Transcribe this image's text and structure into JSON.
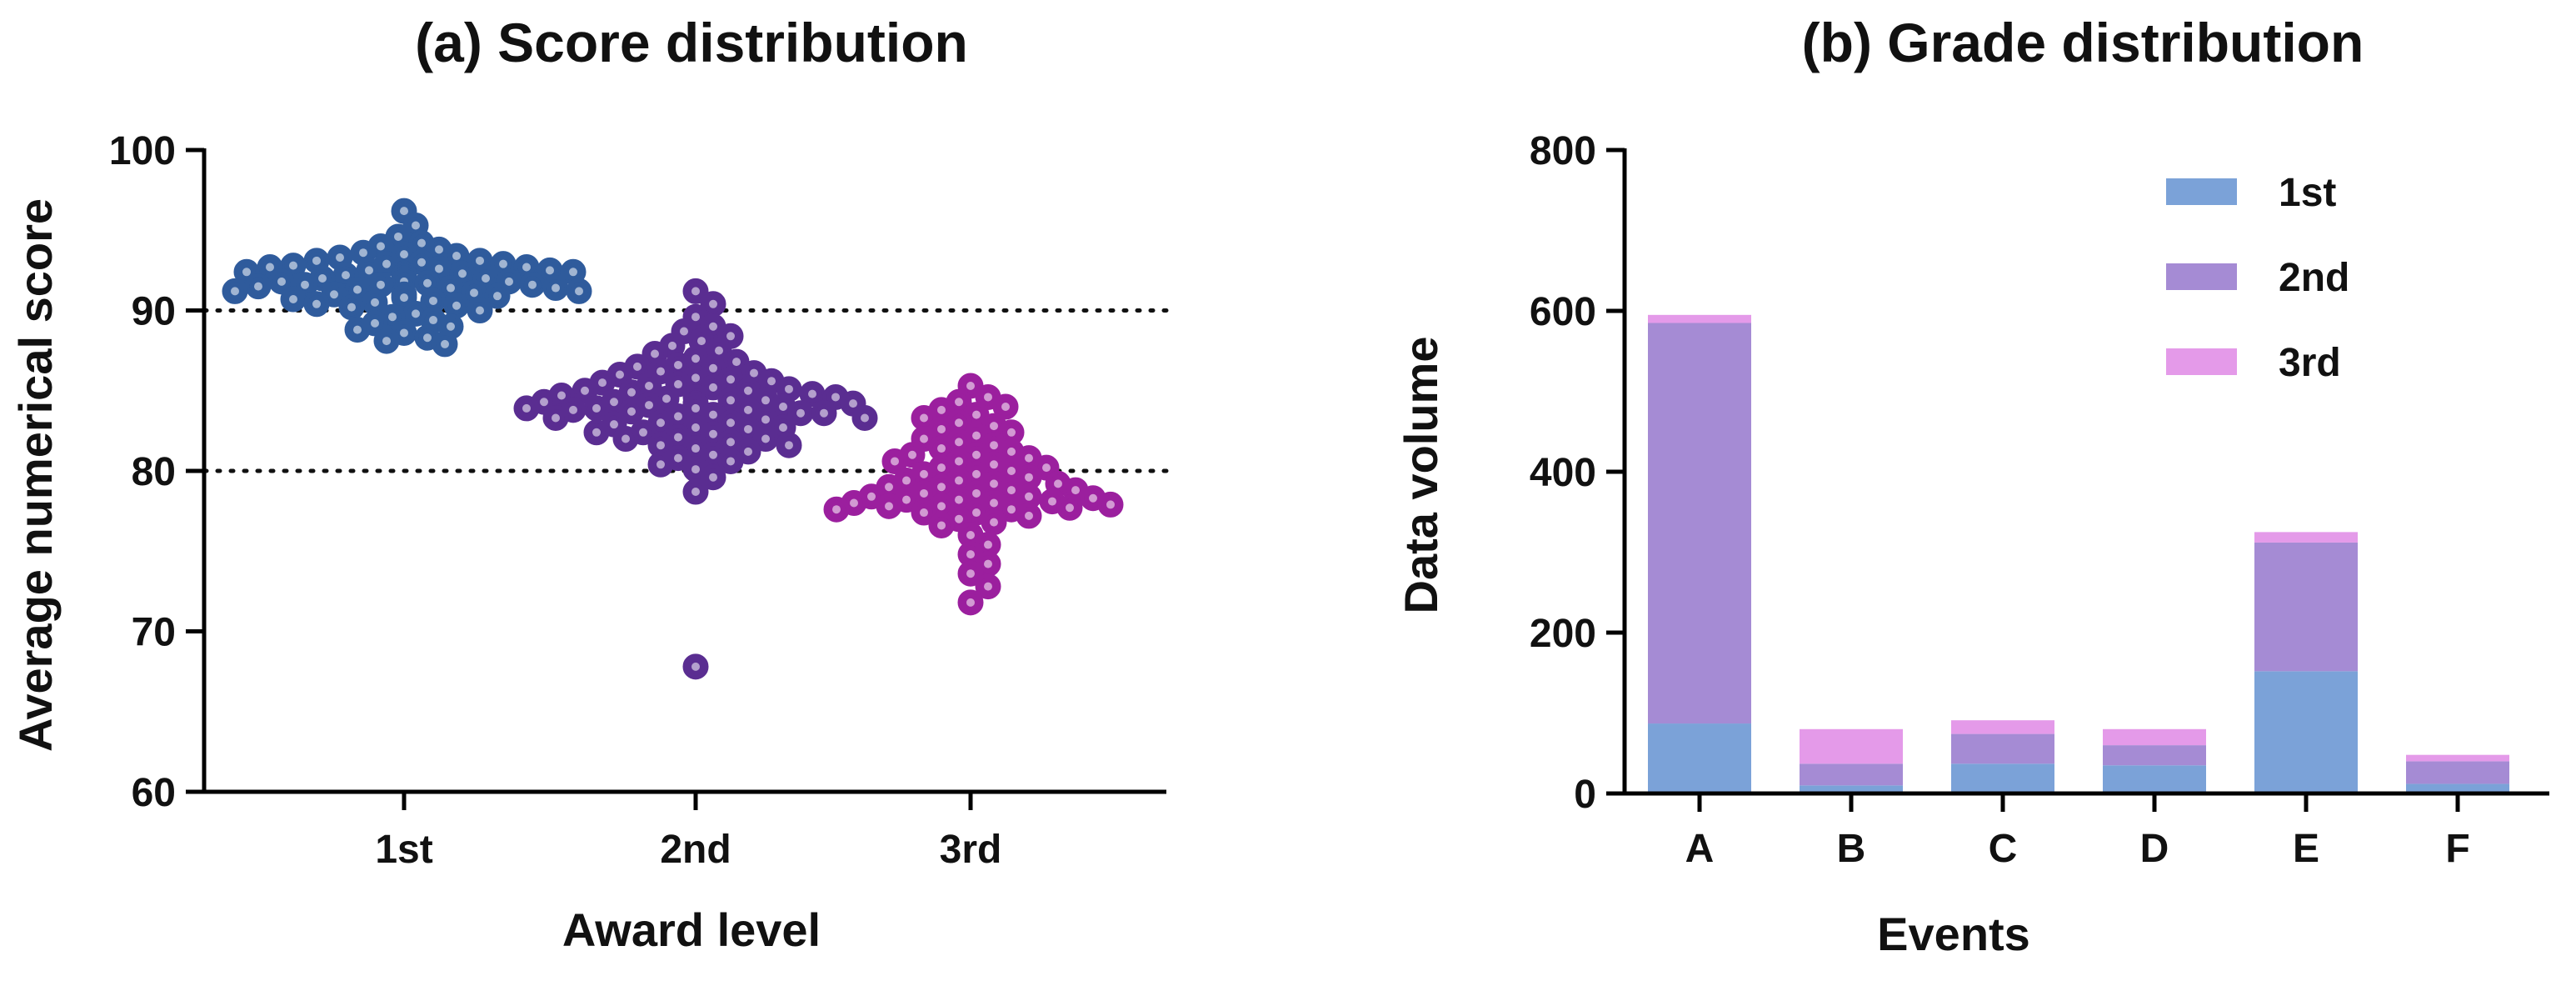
{
  "chart_data": [
    {
      "type": "scatter",
      "title": "(a) Score distribution",
      "xlabel": "Award level",
      "ylabel": "Average numerical score",
      "categories": [
        "1st",
        "2nd",
        "3rd"
      ],
      "ylim": [
        60,
        100
      ],
      "yticks": [
        60,
        70,
        80,
        90,
        100
      ],
      "reference_lines": [
        80,
        90
      ],
      "grid": false,
      "series": [
        {
          "category": "1st",
          "color": "#2f5b9c",
          "values": [
            96.2,
            95.3,
            94.2,
            93.8,
            93.5,
            93.3,
            93.1,
            92.9,
            92.7,
            92.5,
            92.3,
            92.2,
            92.0,
            91.8,
            91.6,
            91.4,
            91.2,
            91.0,
            90.7,
            90.5,
            90.3,
            90.0,
            89.6,
            89.2,
            88.8,
            88.3,
            87.9,
            93.0,
            92.8,
            92.6,
            92.4,
            92.2,
            92.0,
            91.8,
            91.6,
            91.4,
            91.2,
            91.0,
            90.8,
            90.6,
            90.4,
            92.1,
            91.9,
            92.3,
            91.7,
            92.5,
            91.5,
            92.7,
            91.3,
            92.9,
            91.1,
            93.1,
            90.9,
            90.2,
            89.8,
            89.4,
            89.0,
            88.6,
            88.1,
            93.4,
            93.6,
            94.0,
            94.6,
            92.0,
            92.2,
            91.8,
            92.4,
            91.6
          ]
        },
        {
          "category": "2nd",
          "color": "#5a2d91",
          "values": [
            91.2,
            90.4,
            89.6,
            89.0,
            88.4,
            87.8,
            87.3,
            86.8,
            86.4,
            86.0,
            85.6,
            85.2,
            84.8,
            84.4,
            84.1,
            83.8,
            83.5,
            83.2,
            82.9,
            82.6,
            82.3,
            82.0,
            81.6,
            81.2,
            80.8,
            80.4,
            79.6,
            78.7,
            88.7,
            88.1,
            87.5,
            87.0,
            86.6,
            86.2,
            85.8,
            85.4,
            85.0,
            84.6,
            84.2,
            83.9,
            83.6,
            83.3,
            83.0,
            82.7,
            82.4,
            82.1,
            81.8,
            81.4,
            81.0,
            80.6,
            80.1,
            86.5,
            86.1,
            85.7,
            85.3,
            84.9,
            84.5,
            84.2,
            83.9,
            83.6,
            83.3,
            83.0,
            82.7,
            82.4,
            82.0,
            81.6,
            85.5,
            85.1,
            84.7,
            84.3,
            84.0,
            83.7,
            83.4,
            85.0,
            84.6,
            84.2,
            83.8,
            84.4,
            84.1,
            83.9,
            84.3,
            67.8
          ]
        },
        {
          "category": "3rd",
          "color": "#9b1f9e",
          "values": [
            85.3,
            84.6,
            84.0,
            83.5,
            83.0,
            82.6,
            82.2,
            81.8,
            81.4,
            81.0,
            80.6,
            80.2,
            79.8,
            79.4,
            79.0,
            78.6,
            78.2,
            77.8,
            77.4,
            77.0,
            76.6,
            76.0,
            75.4,
            74.8,
            74.2,
            73.6,
            72.8,
            71.8,
            84.3,
            83.8,
            83.3,
            82.8,
            82.4,
            82.0,
            81.6,
            81.2,
            80.8,
            80.4,
            80.0,
            79.6,
            79.2,
            78.8,
            78.4,
            78.0,
            77.6,
            77.2,
            76.8,
            81.0,
            80.6,
            80.2,
            79.8,
            79.4,
            79.0,
            78.6,
            78.2,
            77.8,
            77.4,
            79.2,
            78.8,
            78.4,
            78.0,
            77.6,
            78.1,
            77.9,
            78.3,
            77.7
          ]
        }
      ]
    },
    {
      "type": "bar",
      "stacked": true,
      "title": "(b) Grade distribution",
      "xlabel": "Events",
      "ylabel": "Data volume",
      "categories": [
        "A",
        "B",
        "C",
        "D",
        "E",
        "F"
      ],
      "ylim": [
        0,
        800
      ],
      "yticks": [
        0,
        200,
        400,
        600,
        800
      ],
      "grid": false,
      "legend_position": "top-right",
      "series": [
        {
          "name": "1st",
          "color": "#7ba2d8",
          "values": [
            87,
            10,
            37,
            35,
            152,
            12
          ]
        },
        {
          "name": "2nd",
          "color": "#a58bd4",
          "values": [
            498,
            27,
            37,
            25,
            160,
            28
          ]
        },
        {
          "name": "3rd",
          "color": "#e49ae9",
          "values": [
            10,
            43,
            17,
            20,
            13,
            8
          ]
        }
      ]
    }
  ]
}
